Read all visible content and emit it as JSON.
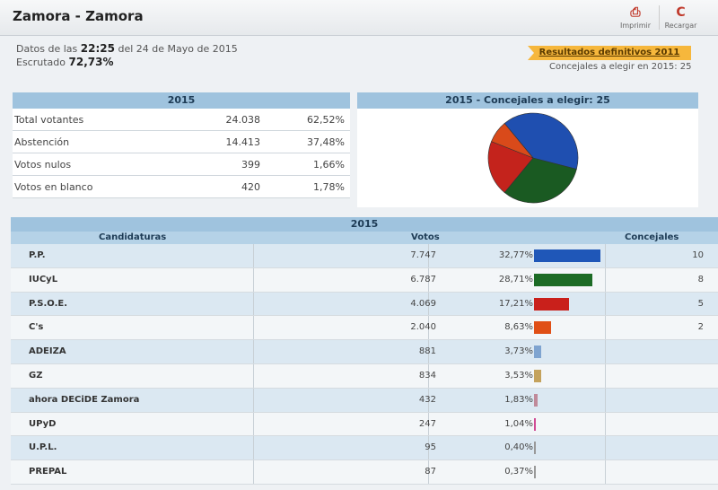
{
  "header": {
    "title": "Zamora - Zamora",
    "print_label": "Imprimir",
    "reload_label": "Recargar",
    "print_icon": "printer-icon",
    "reload_icon": "reload-icon"
  },
  "info": {
    "datos_prefix": "Datos de las",
    "time": "22:25",
    "date_text": "del 24 de Mayo de 2015",
    "escrutado_label": "Escrutado",
    "escrutado_value": "72,73%",
    "results_2011_link": "Resultados definitivos 2011",
    "concejales_text": "Concejales a elegir en 2015: 25"
  },
  "summary": {
    "title": "2015",
    "rows": [
      {
        "label": "Total votantes",
        "value": "24.038",
        "pct": "62,52%"
      },
      {
        "label": "Abstención",
        "value": "14.413",
        "pct": "37,48%"
      },
      {
        "label": "Votos nulos",
        "value": "399",
        "pct": "1,66%"
      },
      {
        "label": "Votos en blanco",
        "value": "420",
        "pct": "1,78%"
      }
    ]
  },
  "pie": {
    "title": "2015 - Concejales a elegir: 25"
  },
  "chart_data": {
    "type": "pie",
    "title": "2015 - Concejales a elegir: 25",
    "categories": [
      "P.P.",
      "IUCyL",
      "P.S.O.E.",
      "C's"
    ],
    "values": [
      10,
      8,
      5,
      2
    ],
    "colors": [
      "#1f4fb0",
      "#1a5a22",
      "#c4231c",
      "#d94a1a"
    ]
  },
  "results": {
    "title": "2015",
    "col_candidaturas": "Candidaturas",
    "col_votos": "Votos",
    "col_concejales": "Concejales",
    "rows": [
      {
        "name": "P.P.",
        "votes": "7.747",
        "pct": "32,77%",
        "pct_value": 32.77,
        "color": "#1f57b8",
        "concejales": "10"
      },
      {
        "name": "IUCyL",
        "votes": "6.787",
        "pct": "28,71%",
        "pct_value": 28.71,
        "color": "#1c6b25",
        "concejales": "8"
      },
      {
        "name": "P.S.O.E.",
        "votes": "4.069",
        "pct": "17,21%",
        "pct_value": 17.21,
        "color": "#c9201b",
        "concejales": "5"
      },
      {
        "name": "C's",
        "votes": "2.040",
        "pct": "8,63%",
        "pct_value": 8.63,
        "color": "#e04f16",
        "concejales": "2"
      },
      {
        "name": "ADEIZA",
        "votes": "881",
        "pct": "3,73%",
        "pct_value": 3.73,
        "color": "#7fa4d0",
        "concejales": ""
      },
      {
        "name": "GZ",
        "votes": "834",
        "pct": "3,53%",
        "pct_value": 3.53,
        "color": "#c4a25c",
        "concejales": ""
      },
      {
        "name": "ahora DECiDE Zamora",
        "votes": "432",
        "pct": "1,83%",
        "pct_value": 1.83,
        "color": "#c08a9a",
        "concejales": ""
      },
      {
        "name": "UPyD",
        "votes": "247",
        "pct": "1,04%",
        "pct_value": 1.04,
        "color": "#d04b94",
        "concejales": ""
      },
      {
        "name": "U.P.L.",
        "votes": "95",
        "pct": "0,40%",
        "pct_value": 0.4,
        "color": "#999999",
        "concejales": ""
      },
      {
        "name": "PREPAL",
        "votes": "87",
        "pct": "0,37%",
        "pct_value": 0.37,
        "color": "#999999",
        "concejales": ""
      }
    ]
  }
}
